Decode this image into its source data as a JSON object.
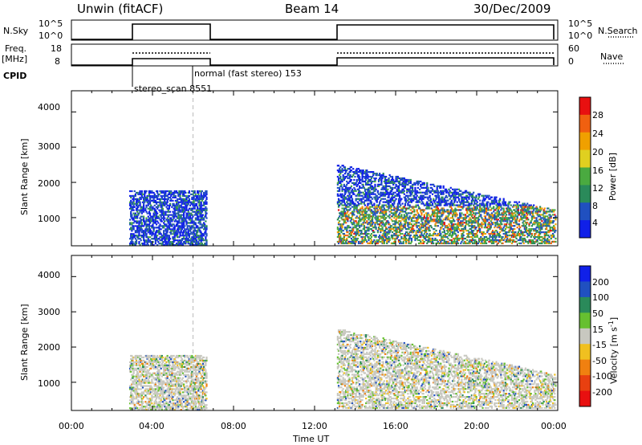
{
  "header": {
    "station": "Unwin (fitACF)",
    "beam": "Beam 14",
    "date": "30/Dec/2009"
  },
  "strip_labels": {
    "nsky": "N.Sky",
    "nsky_ticks": [
      "10^5",
      "10^0"
    ],
    "nsearch": "N.Search",
    "nsearch_ticks": [
      "10^5",
      "10^0"
    ],
    "freq": "Freq.",
    "freq_unit": "[MHz]",
    "freq_ticks": [
      "18",
      "8"
    ],
    "nave": "Nave",
    "nave_ticks": [
      "60",
      "0"
    ],
    "cpid": "CPID",
    "cpid_entries": [
      "stereo_scan 8551",
      "normal (fast stereo) 153"
    ]
  },
  "chart_data": [
    {
      "type": "heatmap",
      "quantity": "power",
      "ylabel": "Slant Range [km]",
      "xlabel": "",
      "xlim": [
        0,
        24
      ],
      "ylim": [
        200,
        4600
      ],
      "y_ticks": [
        1000,
        2000,
        3000,
        4000
      ],
      "colorbar_label": "Power [dB]",
      "colorbar_ticks": [
        4,
        8,
        12,
        16,
        20,
        24,
        28
      ],
      "colorbar_colors": [
        "#1020e8",
        "#2050c0",
        "#2a8a5a",
        "#4aaa40",
        "#e0d020",
        "#f0a000",
        "#f06010",
        "#e81010"
      ],
      "scatter_blocks": [
        {
          "t": [
            2.85,
            6.65
          ],
          "r": [
            200,
            1750
          ],
          "level": "low"
        },
        {
          "t": [
            13.1,
            23.9
          ],
          "r": [
            250,
            2600
          ],
          "level": "mixed"
        }
      ]
    },
    {
      "type": "heatmap",
      "quantity": "velocity",
      "ylabel": "Slant Range [km]",
      "xlabel": "Time UT",
      "xlim": [
        0,
        24
      ],
      "ylim": [
        200,
        4600
      ],
      "y_ticks": [
        1000,
        2000,
        3000,
        4000
      ],
      "x_ticks": [
        "00:00",
        "04:00",
        "08:00",
        "12:00",
        "16:00",
        "20:00",
        "00:00"
      ],
      "colorbar_label": "Velocity [m s",
      "colorbar_unit_sup": "-1",
      "colorbar_unit_close": "]",
      "colorbar_ticks": [
        "200",
        "100",
        "50",
        "15",
        "-15",
        "-50",
        "-100",
        "-200"
      ],
      "colorbar_colors": [
        "#1020e8",
        "#2050c0",
        "#2a8a5a",
        "#66c030",
        "#c8c8c0",
        "#f0c020",
        "#f08010",
        "#e84010",
        "#e81010"
      ]
    }
  ]
}
